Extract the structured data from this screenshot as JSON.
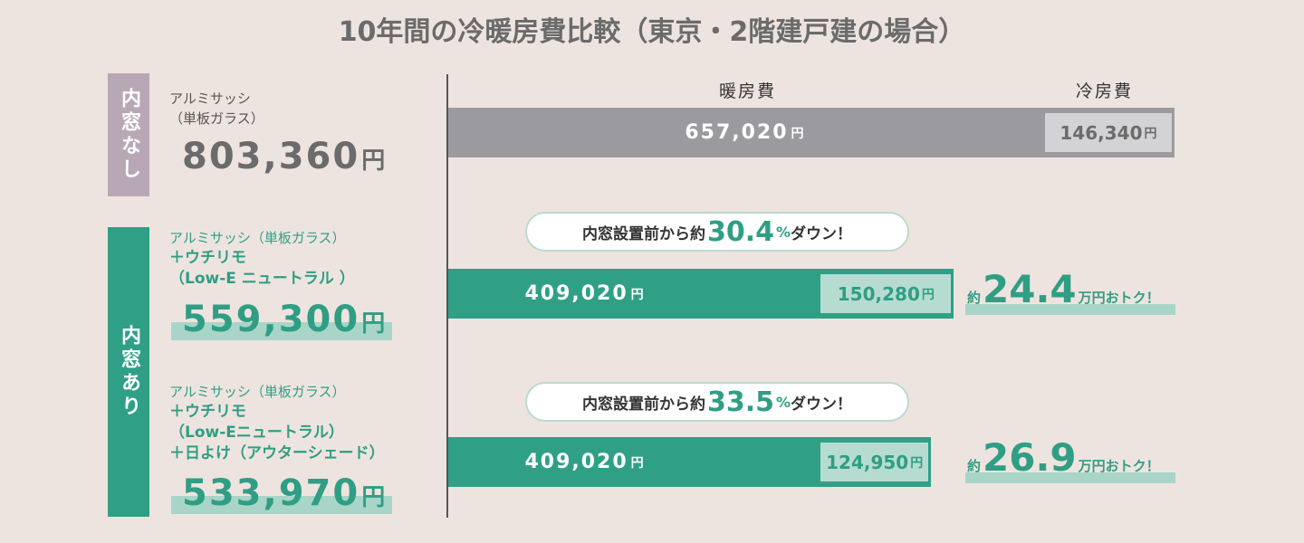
{
  "title": "10年間の冷暖房費比較（東京・2階建戸建の場合）",
  "colors": {
    "heat_none": "#9b9b9f",
    "heat_with": "#2fa086",
    "cool_none": "#d3d3d5",
    "cool_with": "#b6dcd2",
    "accent": "#2f9e84"
  },
  "chart_data": {
    "type": "bar",
    "stacked": true,
    "orientation": "horizontal",
    "column_headers": [
      "暖房費",
      "冷房費"
    ],
    "series": [
      {
        "name": "暖房費",
        "values": [
          657020,
          409020,
          409020
        ]
      },
      {
        "name": "冷房費",
        "values": [
          146340,
          150280,
          124950
        ]
      }
    ],
    "rows": [
      {
        "group": "内窓なし",
        "lines": [
          "アルミサッシ",
          "（単板ガラス）"
        ],
        "total": "803,360",
        "yen": "円",
        "heating_label": "657,020",
        "cooling_label": "146,340"
      },
      {
        "group": "内窓あり",
        "lines": [
          "アルミサッシ（単板ガラス）",
          "＋ウチリモ",
          "（Low-E ニュートラル ）"
        ],
        "total": "559,300",
        "yen": "円",
        "heating_label": "409,020",
        "cooling_label": "150,280",
        "reduction": {
          "prefix": "内窓設置前から約",
          "percent": "30.4",
          "symbol": "%",
          "suffix": "ダウン！"
        },
        "saving": {
          "prefix": "約",
          "value": "24.4",
          "suffix": "万円おトク！"
        }
      },
      {
        "group": "内窓あり",
        "lines": [
          "アルミサッシ（単板ガラス）",
          "＋ウチリモ",
          "（Low-Eニュートラル）",
          "＋日よけ（アウターシェード）"
        ],
        "total": "533,970",
        "yen": "円",
        "heating_label": "409,020",
        "cooling_label": "124,950",
        "reduction": {
          "prefix": "内窓設置前から約",
          "percent": "33.5",
          "symbol": "%",
          "suffix": "ダウン！"
        },
        "saving": {
          "prefix": "約",
          "value": "26.9",
          "suffix": "万円おトク！"
        }
      }
    ]
  },
  "tags": {
    "none": "内窓なし",
    "with": "内窓あり"
  }
}
